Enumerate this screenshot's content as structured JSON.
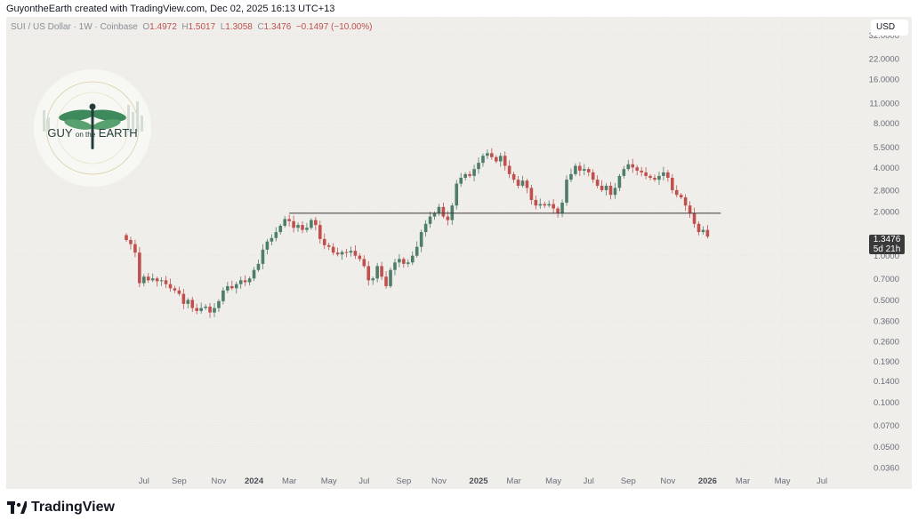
{
  "header": {
    "attribution": "GuyontheEarth created with TradingView.com, Dec 02, 2025 16:13 UTC+13"
  },
  "legend": {
    "symbol": "SUI / US Dollar · 1W · Coinbase",
    "o_label": "O",
    "o_value": "1.4972",
    "h_label": "H",
    "h_value": "1.5017",
    "l_label": "L",
    "l_value": "1.3058",
    "c_label": "C",
    "c_value": "1.3476",
    "change": "−0.1497 (−10.00%)"
  },
  "currency_button": "USD",
  "price_badge": {
    "price": "1.3476",
    "countdown": "5d 21h"
  },
  "logo": {
    "text_left": "GUY",
    "text_mid": "on the",
    "text_right": "EARTH"
  },
  "footer": {
    "brand": "TradingView"
  },
  "colors": {
    "up": "#4e7d6a",
    "down": "#c0504d",
    "background": "#efeeea",
    "line": "#3a3a3a"
  },
  "chart_data": {
    "type": "candlestick",
    "title": "SUI / US Dollar · 1W · Coinbase",
    "y_scale": "log",
    "y_ticks": [
      "32.0000",
      "22.0000",
      "16.0000",
      "11.0000",
      "8.0000",
      "5.5000",
      "4.0000",
      "2.8000",
      "2.0000",
      "1.0000",
      "0.7000",
      "0.5000",
      "0.3600",
      "0.2600",
      "0.1900",
      "0.1400",
      "0.1000",
      "0.0700",
      "0.0500",
      "0.0360"
    ],
    "y_tick_values": [
      32,
      22,
      16,
      11,
      8,
      5.5,
      4,
      2.8,
      2,
      1,
      0.7,
      0.5,
      0.36,
      0.26,
      0.19,
      0.14,
      0.1,
      0.07,
      0.05,
      0.036
    ],
    "x_ticks": [
      {
        "label": "Jul",
        "bold": false,
        "week": 4
      },
      {
        "label": "Sep",
        "bold": false,
        "week": 12
      },
      {
        "label": "Nov",
        "bold": false,
        "week": 21
      },
      {
        "label": "2024",
        "bold": true,
        "week": 29
      },
      {
        "label": "Mar",
        "bold": false,
        "week": 37
      },
      {
        "label": "May",
        "bold": false,
        "week": 46
      },
      {
        "label": "Jul",
        "bold": false,
        "week": 54
      },
      {
        "label": "Sep",
        "bold": false,
        "week": 63
      },
      {
        "label": "Nov",
        "bold": false,
        "week": 71
      },
      {
        "label": "2025",
        "bold": true,
        "week": 80
      },
      {
        "label": "Mar",
        "bold": false,
        "week": 88
      },
      {
        "label": "May",
        "bold": false,
        "week": 97
      },
      {
        "label": "Jul",
        "bold": false,
        "week": 105
      },
      {
        "label": "Sep",
        "bold": false,
        "week": 114
      },
      {
        "label": "Nov",
        "bold": false,
        "week": 123
      },
      {
        "label": "2026",
        "bold": true,
        "week": 132
      },
      {
        "label": "Mar",
        "bold": false,
        "week": 140
      },
      {
        "label": "May",
        "bold": false,
        "week": 149
      },
      {
        "label": "Jul",
        "bold": false,
        "week": 158
      }
    ],
    "horizontal_line": {
      "price": 1.95,
      "from_week": 37,
      "to_week": 135
    },
    "closes": [
      1.28,
      1.2,
      1.05,
      0.65,
      0.72,
      0.68,
      0.7,
      0.67,
      0.68,
      0.64,
      0.6,
      0.58,
      0.55,
      0.47,
      0.5,
      0.44,
      0.42,
      0.44,
      0.45,
      0.41,
      0.44,
      0.49,
      0.58,
      0.62,
      0.6,
      0.64,
      0.68,
      0.66,
      0.7,
      0.8,
      0.88,
      1.1,
      1.25,
      1.32,
      1.45,
      1.6,
      1.78,
      1.72,
      1.55,
      1.62,
      1.5,
      1.55,
      1.75,
      1.62,
      1.3,
      1.18,
      1.15,
      1.05,
      1.02,
      1.06,
      1.05,
      1.08,
      1.0,
      0.95,
      0.85,
      0.68,
      0.7,
      0.85,
      0.72,
      0.62,
      0.8,
      0.9,
      0.95,
      0.88,
      0.9,
      1.0,
      1.15,
      1.45,
      1.65,
      1.85,
      1.95,
      2.15,
      1.85,
      1.75,
      2.2,
      3.1,
      3.4,
      3.6,
      3.5,
      3.9,
      4.3,
      4.8,
      5.0,
      4.7,
      4.4,
      4.8,
      4.1,
      3.6,
      3.3,
      3.0,
      3.25,
      2.9,
      2.4,
      2.2,
      2.25,
      2.2,
      2.25,
      2.1,
      1.95,
      2.3,
      3.3,
      3.6,
      4.1,
      3.8,
      3.9,
      3.7,
      3.3,
      3.0,
      2.8,
      3.0,
      2.6,
      2.9,
      3.5,
      3.9,
      4.2,
      4.0,
      3.8,
      3.7,
      3.5,
      3.4,
      3.3,
      3.5,
      3.7,
      3.4,
      2.8,
      2.6,
      2.5,
      2.2,
      1.95,
      1.65,
      1.45,
      1.5,
      1.35
    ]
  }
}
